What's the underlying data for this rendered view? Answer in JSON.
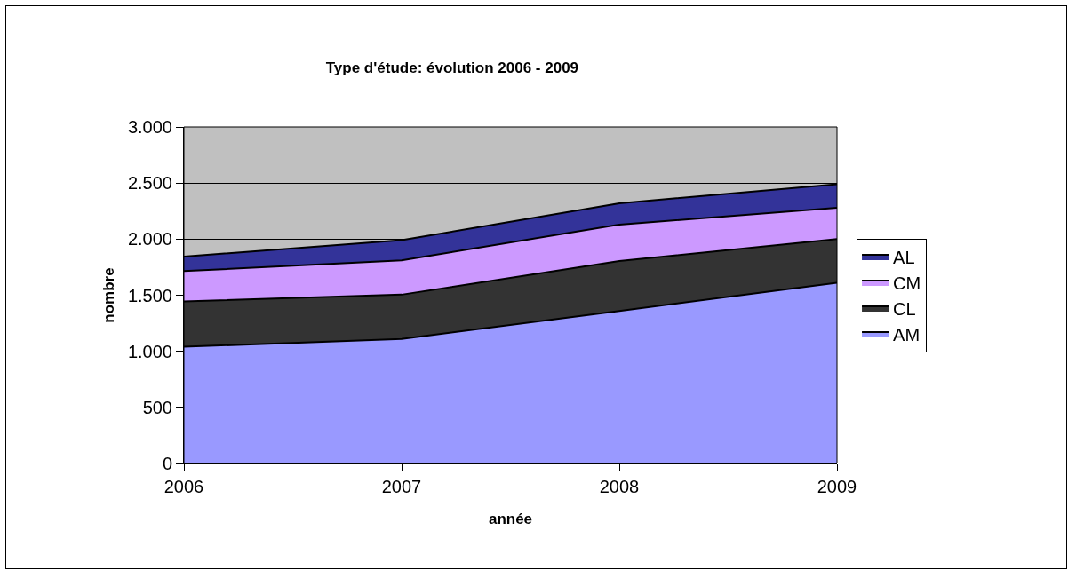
{
  "chart_data": {
    "type": "area",
    "title": "Type d'étude: évolution 2006 - 2009",
    "xlabel": "année",
    "ylabel": "nombre",
    "categories": [
      "2006",
      "2007",
      "2008",
      "2009"
    ],
    "stacked": true,
    "series": [
      {
        "name": "AM",
        "color": "#9999ff",
        "values": [
          1040,
          1110,
          1360,
          1610
        ]
      },
      {
        "name": "CL",
        "color": "#333333",
        "values": [
          405,
          395,
          445,
          390
        ]
      },
      {
        "name": "CM",
        "color": "#cc99ff",
        "values": [
          270,
          305,
          325,
          280
        ]
      },
      {
        "name": "AL",
        "color": "#333399",
        "values": [
          130,
          180,
          190,
          210
        ]
      }
    ],
    "ylim": [
      0,
      3000
    ],
    "yticks": [
      {
        "value": 0,
        "label": "0"
      },
      {
        "value": 500,
        "label": "500"
      },
      {
        "value": 1000,
        "label": "1.000"
      },
      {
        "value": 1500,
        "label": "1.500"
      },
      {
        "value": 2000,
        "label": "2.000"
      },
      {
        "value": 2500,
        "label": "2.500"
      },
      {
        "value": 3000,
        "label": "3.000"
      }
    ],
    "grid": "y",
    "legend": "right"
  }
}
